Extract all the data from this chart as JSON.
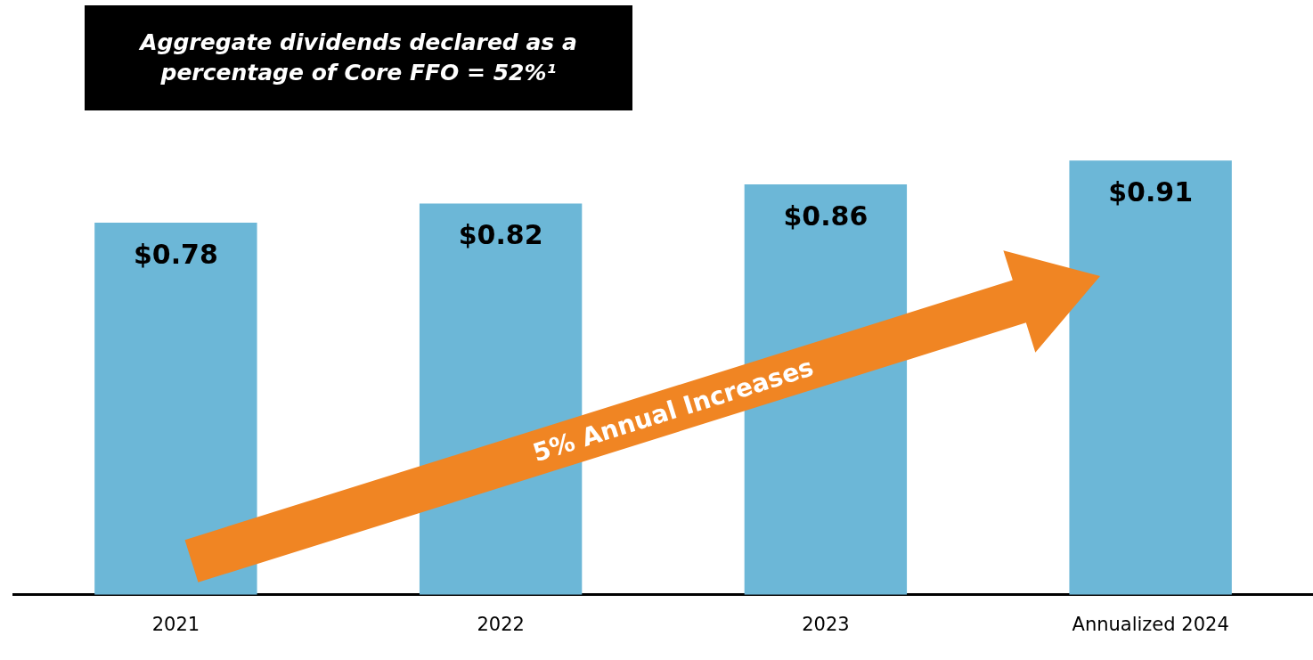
{
  "chart_data": {
    "type": "bar",
    "title": "Aggregate dividends declared as a percentage of Core FFO = 52%¹",
    "categories": [
      "2021",
      "2022",
      "2023",
      "Annualized 2024"
    ],
    "values": [
      0.78,
      0.82,
      0.86,
      0.91
    ],
    "value_labels": [
      "$0.78",
      "$0.82",
      "$0.86",
      "$0.91"
    ],
    "color": "#6cb7d7",
    "tick_labels": "x",
    "grid": false,
    "legend": false,
    "annotations": [
      "5% Annual Increases"
    ]
  }
}
